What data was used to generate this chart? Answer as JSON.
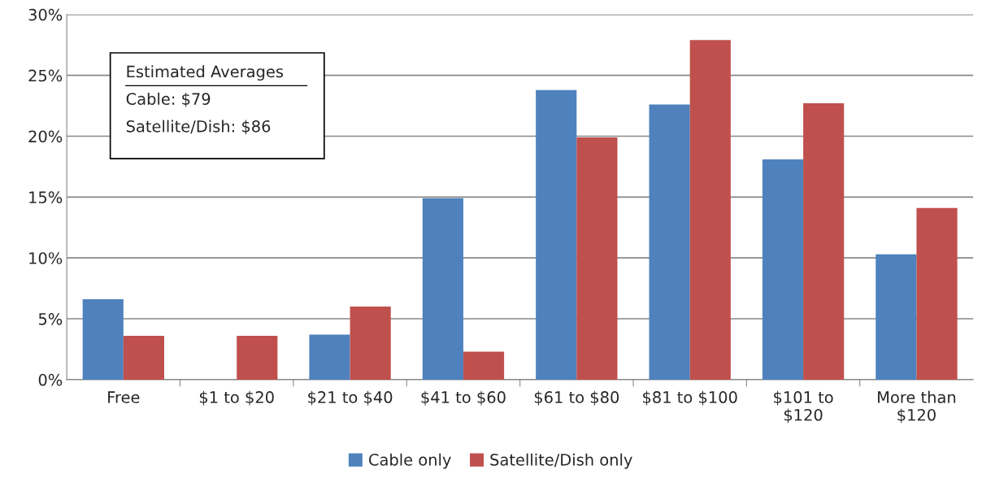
{
  "chart_data": {
    "type": "bar",
    "categories": [
      "Free",
      "$1 to $20",
      "$21 to $40",
      "$41 to $60",
      "$61 to $80",
      "$81 to $100",
      "$101 to\n$120",
      "More than\n$120"
    ],
    "series": [
      {
        "name": "Cable only",
        "color": "#4f81bd",
        "values": [
          6.6,
          0,
          3.7,
          14.9,
          23.8,
          22.6,
          18.1,
          10.3
        ]
      },
      {
        "name": "Satellite/Dish only",
        "color": "#c0504d",
        "values": [
          3.6,
          3.6,
          6.0,
          2.3,
          19.9,
          27.9,
          22.7,
          14.1
        ]
      }
    ],
    "ylim": [
      0,
      30
    ],
    "yticks": [
      {
        "value": 0,
        "label": "0%"
      },
      {
        "value": 5,
        "label": "5%"
      },
      {
        "value": 10,
        "label": "10%"
      },
      {
        "value": 15,
        "label": "15%"
      },
      {
        "value": 20,
        "label": "20%"
      },
      {
        "value": 25,
        "label": "25%"
      },
      {
        "value": 30,
        "label": "30%"
      }
    ],
    "grid": "y",
    "legend": "bottom",
    "annotations": [
      "Estimated Averages",
      "Cable: $79",
      "Satellite/Dish: $86"
    ]
  }
}
